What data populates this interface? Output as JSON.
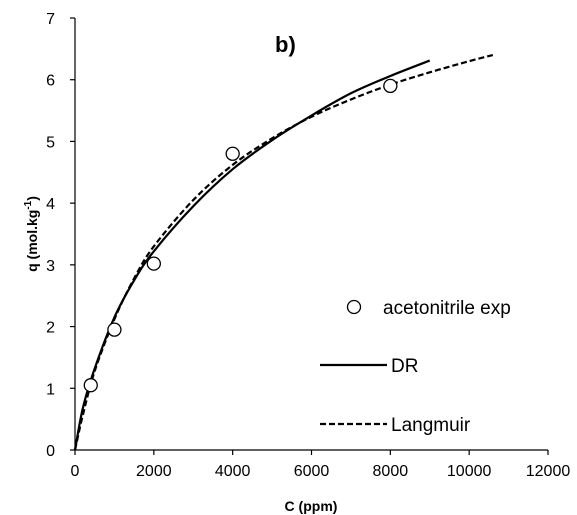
{
  "chart_data": {
    "type": "scatter",
    "annotation": "b)",
    "xlabel": "C (ppm)",
    "ylabel": "q (mol.kg",
    "ylabel_superscript": "-1",
    "ylabel_suffix": ")",
    "xlim": [
      0,
      12000
    ],
    "ylim": [
      0,
      7
    ],
    "x_ticks": [
      0,
      2000,
      4000,
      6000,
      8000,
      10000,
      12000
    ],
    "x_tick_labels": [
      "0",
      "2000",
      "4000",
      "6000",
      "8000",
      "10000",
      "12000"
    ],
    "y_ticks": [
      0,
      1,
      2,
      3,
      4,
      5,
      6,
      7
    ],
    "y_tick_labels": [
      "0",
      "1",
      "2",
      "3",
      "4",
      "5",
      "6",
      "7"
    ],
    "grid": false,
    "legend_position": "right",
    "series": [
      {
        "name": "acetonitrile exp",
        "kind": "marker",
        "marker": "open-circle",
        "color": "#000000",
        "x": [
          400,
          1000,
          2000,
          4000,
          8000
        ],
        "y": [
          1.05,
          1.95,
          3.02,
          4.8,
          5.9
        ]
      },
      {
        "name": "DR",
        "kind": "line",
        "style": "solid",
        "color": "#000000",
        "x": [
          0,
          200,
          500,
          1000,
          1500,
          2000,
          3000,
          4000,
          5000,
          6000,
          7000,
          8000,
          9000
        ],
        "y": [
          0.0,
          0.68,
          1.32,
          2.15,
          2.75,
          3.22,
          3.95,
          4.55,
          5.02,
          5.42,
          5.78,
          6.06,
          6.31
        ]
      },
      {
        "name": "Langmuir",
        "kind": "line",
        "style": "dashed",
        "color": "#000000",
        "x": [
          0,
          200,
          500,
          1000,
          1500,
          2000,
          3000,
          4000,
          5000,
          6000,
          7000,
          8000,
          9000,
          10000,
          10600
        ],
        "y": [
          0.0,
          0.57,
          1.28,
          2.12,
          2.78,
          3.3,
          4.05,
          4.62,
          5.05,
          5.4,
          5.68,
          5.92,
          6.12,
          6.3,
          6.4
        ]
      }
    ]
  }
}
